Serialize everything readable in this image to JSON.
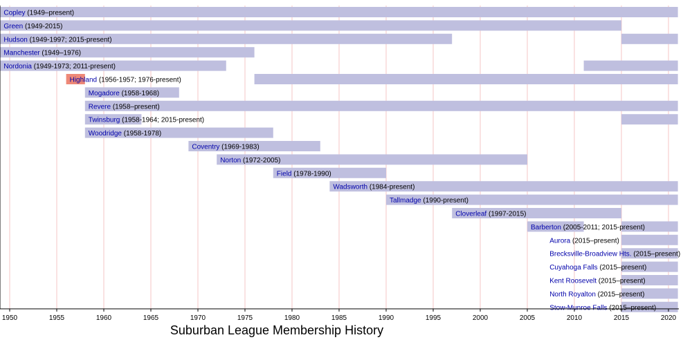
{
  "chart_data": {
    "type": "bar",
    "orientation": "horizontal-timeline",
    "title": "Suburban League Membership History",
    "xlabel": "",
    "ylabel": "",
    "xlim": [
      1949,
      2021
    ],
    "x_ticks": [
      1950,
      1955,
      1960,
      1965,
      1970,
      1975,
      1980,
      1985,
      1990,
      1995,
      2000,
      2005,
      2010,
      2015,
      2020
    ],
    "grid": "vertical",
    "colors": {
      "member": "#bfbfdf",
      "former": "#ee8877",
      "grid": "#f4c6c6",
      "name_text": "#0000aa"
    },
    "rows": [
      {
        "name": "Copley",
        "years": " (1949–present)",
        "label_x": 1949,
        "segments": [
          {
            "start": 1949,
            "end": 2021,
            "status": "member"
          }
        ]
      },
      {
        "name": "Green",
        "years": " (1949-2015)",
        "label_x": 1949,
        "segments": [
          {
            "start": 1949,
            "end": 2015,
            "status": "member"
          }
        ]
      },
      {
        "name": "Hudson",
        "years": " (1949-1997; 2015-present)",
        "label_x": 1949,
        "segments": [
          {
            "start": 1949,
            "end": 1997,
            "status": "member"
          },
          {
            "start": 2015,
            "end": 2021,
            "status": "member"
          }
        ]
      },
      {
        "name": "Manchester",
        "years": " (1949–1976)",
        "label_x": 1949,
        "segments": [
          {
            "start": 1949,
            "end": 1976,
            "status": "member"
          }
        ]
      },
      {
        "name": "Nordonia",
        "years": " (1949-1973; 2011-present)",
        "label_x": 1949,
        "segments": [
          {
            "start": 1949,
            "end": 1973,
            "status": "member"
          },
          {
            "start": 2011,
            "end": 2021,
            "status": "member"
          }
        ]
      },
      {
        "name": "Highland",
        "years": " (1956-1957; 1976-present)",
        "label_x": 1956,
        "segments": [
          {
            "start": 1956,
            "end": 1958,
            "status": "former"
          },
          {
            "start": 1976,
            "end": 2021,
            "status": "member"
          }
        ]
      },
      {
        "name": "Mogadore",
        "years": " (1958-1968)",
        "label_x": 1958,
        "segments": [
          {
            "start": 1958,
            "end": 1968,
            "status": "member"
          }
        ]
      },
      {
        "name": "Revere",
        "years": " (1958–present)",
        "label_x": 1958,
        "segments": [
          {
            "start": 1958,
            "end": 2021,
            "status": "member"
          }
        ]
      },
      {
        "name": "Twinsburg",
        "years": " (1958-1964; 2015-present)",
        "label_x": 1958,
        "segments": [
          {
            "start": 1958,
            "end": 1964,
            "status": "member"
          },
          {
            "start": 2015,
            "end": 2021,
            "status": "member"
          }
        ]
      },
      {
        "name": "Woodridge",
        "years": " (1958-1978)",
        "label_x": 1958,
        "segments": [
          {
            "start": 1958,
            "end": 1978,
            "status": "member"
          }
        ]
      },
      {
        "name": "Coventry",
        "years": " (1969-1983)",
        "label_x": 1969,
        "segments": [
          {
            "start": 1969,
            "end": 1983,
            "status": "member"
          }
        ]
      },
      {
        "name": "Norton",
        "years": " (1972-2005)",
        "label_x": 1972,
        "segments": [
          {
            "start": 1972,
            "end": 2005,
            "status": "member"
          }
        ]
      },
      {
        "name": "Field",
        "years": " (1978-1990)",
        "label_x": 1978,
        "segments": [
          {
            "start": 1978,
            "end": 1990,
            "status": "member"
          }
        ]
      },
      {
        "name": "Wadsworth",
        "years": " (1984-present)",
        "label_x": 1984,
        "segments": [
          {
            "start": 1984,
            "end": 2021,
            "status": "member"
          }
        ]
      },
      {
        "name": "Tallmadge",
        "years": " (1990-present)",
        "label_x": 1990,
        "segments": [
          {
            "start": 1990,
            "end": 2021,
            "status": "member"
          }
        ]
      },
      {
        "name": "Cloverleaf",
        "years": " (1997-2015)",
        "label_x": 1997,
        "segments": [
          {
            "start": 1997,
            "end": 2015,
            "status": "member"
          }
        ]
      },
      {
        "name": "Barberton",
        "years": " (2005-2011; 2015-present)",
        "label_x": 2005,
        "segments": [
          {
            "start": 2005,
            "end": 2011,
            "status": "member"
          },
          {
            "start": 2015,
            "end": 2021,
            "status": "member"
          }
        ]
      },
      {
        "name": "Aurora",
        "years": " (2015–present)",
        "label_x": 2007,
        "segments": [
          {
            "start": 2015,
            "end": 2021,
            "status": "member"
          }
        ]
      },
      {
        "name": "Brecksville-Broadview Hts.",
        "years": " (2015–present)",
        "label_x": 2007,
        "segments": [
          {
            "start": 2015,
            "end": 2021,
            "status": "member"
          }
        ]
      },
      {
        "name": "Cuyahoga Falls",
        "years": " (2015–present)",
        "label_x": 2007,
        "segments": [
          {
            "start": 2015,
            "end": 2021,
            "status": "member"
          }
        ]
      },
      {
        "name": "Kent Roosevelt",
        "years": " (2015–present)",
        "label_x": 2007,
        "segments": [
          {
            "start": 2015,
            "end": 2021,
            "status": "member"
          }
        ]
      },
      {
        "name": "North Royalton",
        "years": " (2015–present)",
        "label_x": 2007,
        "segments": [
          {
            "start": 2015,
            "end": 2021,
            "status": "member"
          }
        ]
      },
      {
        "name": "Stow-Munroe Falls",
        "years": " (2015–present)",
        "label_x": 2007,
        "segments": [
          {
            "start": 2015,
            "end": 2021,
            "status": "member"
          }
        ]
      }
    ]
  }
}
